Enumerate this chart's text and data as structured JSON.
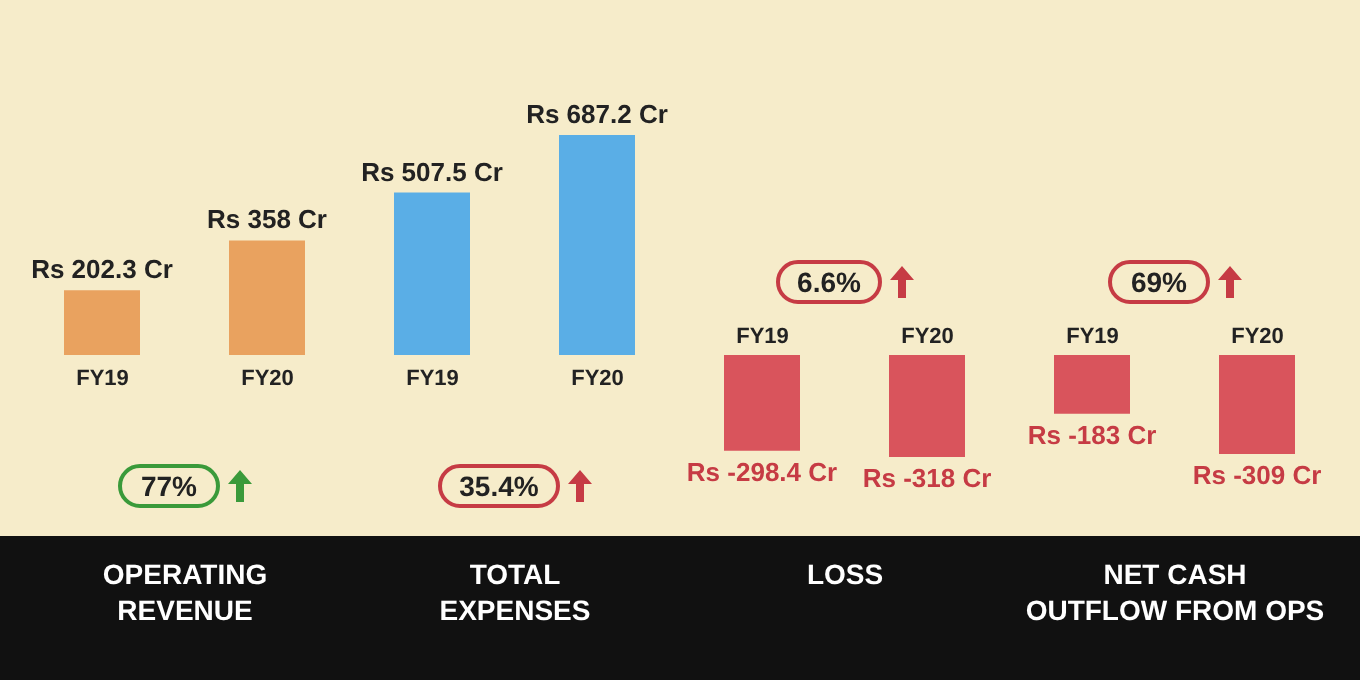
{
  "chart_data": {
    "type": "bar",
    "categories": [
      "FY19",
      "FY20",
      "FY19",
      "FY20",
      "FY19",
      "FY20",
      "FY19",
      "FY20"
    ],
    "values": [
      202.3,
      358,
      507.5,
      687.2,
      -298.4,
      -318,
      -183,
      -309
    ],
    "colors": [
      "#e9a25f",
      "#e9a25f",
      "#5aaee6",
      "#5aaee6",
      "#d9545c",
      "#d9545c",
      "#d9545c",
      "#d9545c"
    ],
    "value_labels": [
      "Rs 202.3 Cr",
      "Rs 358 Cr",
      "Rs 507.5 Cr",
      "Rs 687.2 Cr",
      "Rs -298.4 Cr",
      "Rs -318 Cr",
      "Rs -183 Cr",
      "Rs -309 Cr"
    ],
    "annotations": [
      "77%",
      "35.4%",
      "6.6%",
      "69%",
      "OPERATING\nREVENUE",
      "TOTAL\nEXPENSES",
      "LOSS",
      "NET CASH\nOUTFLOW FROM OPS"
    ]
  }
}
